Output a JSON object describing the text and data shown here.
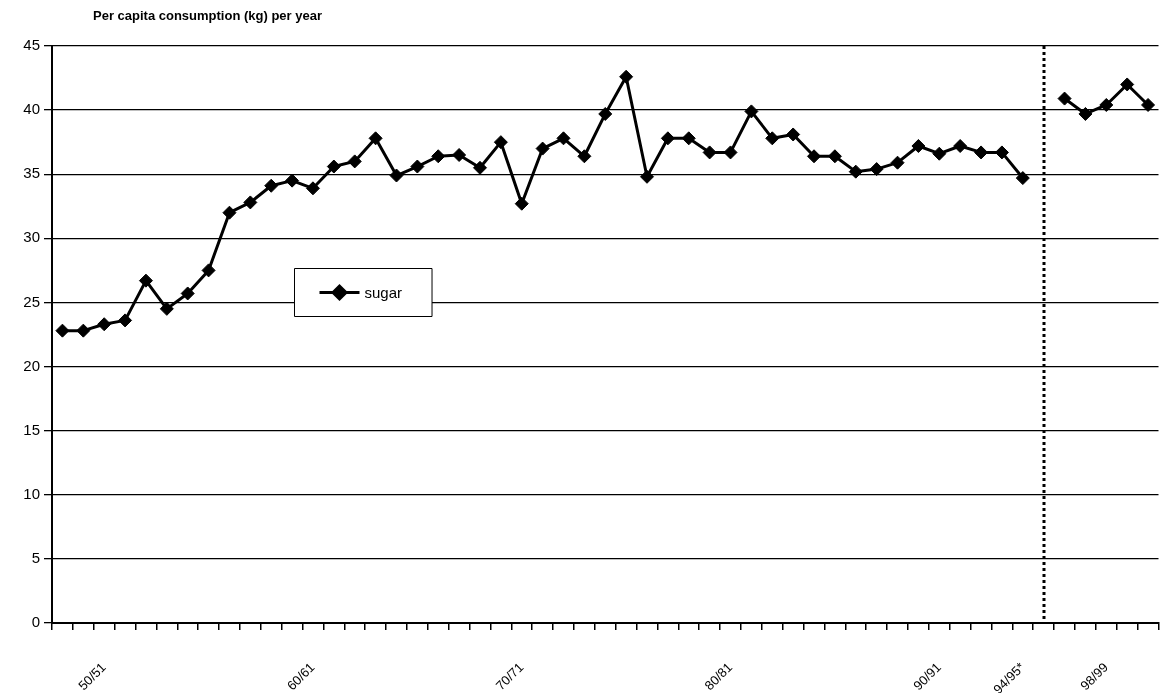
{
  "chart_data": {
    "type": "line",
    "title": "Per capita consumption (kg) per year",
    "categories": [
      null,
      null,
      "50/51",
      null,
      null,
      null,
      null,
      null,
      null,
      null,
      null,
      null,
      "60/61",
      null,
      null,
      null,
      null,
      null,
      null,
      null,
      null,
      null,
      "70/71",
      null,
      null,
      null,
      null,
      null,
      null,
      null,
      null,
      null,
      "80/81",
      null,
      null,
      null,
      null,
      null,
      null,
      null,
      null,
      null,
      "90/91",
      null,
      null,
      null,
      "94/95*",
      null,
      null,
      null,
      "98/99",
      null,
      null
    ],
    "series": [
      {
        "name": "sugar",
        "color": "#000000",
        "values": [
          22.8,
          22.8,
          23.3,
          23.6,
          26.7,
          24.5,
          25.7,
          27.5,
          32.0,
          32.8,
          34.1,
          34.5,
          33.9,
          35.6,
          36.0,
          37.8,
          34.9,
          35.6,
          36.4,
          36.5,
          35.5,
          37.5,
          32.7,
          37.0,
          37.8,
          36.4,
          39.7,
          42.6,
          34.8,
          37.8,
          37.8,
          36.7,
          36.7,
          39.9,
          37.8,
          38.1,
          36.4,
          36.4,
          35.2,
          35.4,
          35.9,
          37.2,
          36.6,
          37.2,
          36.7,
          36.7,
          34.7,
          null,
          40.9,
          39.7,
          40.4,
          42.0,
          40.4
        ]
      }
    ],
    "ylim": [
      0,
      45
    ],
    "yticks": [
      0,
      5,
      10,
      15,
      20,
      25,
      30,
      35,
      40,
      45
    ],
    "grid": "y",
    "legend": "left",
    "marker": "diamond",
    "line_style": "solid"
  }
}
